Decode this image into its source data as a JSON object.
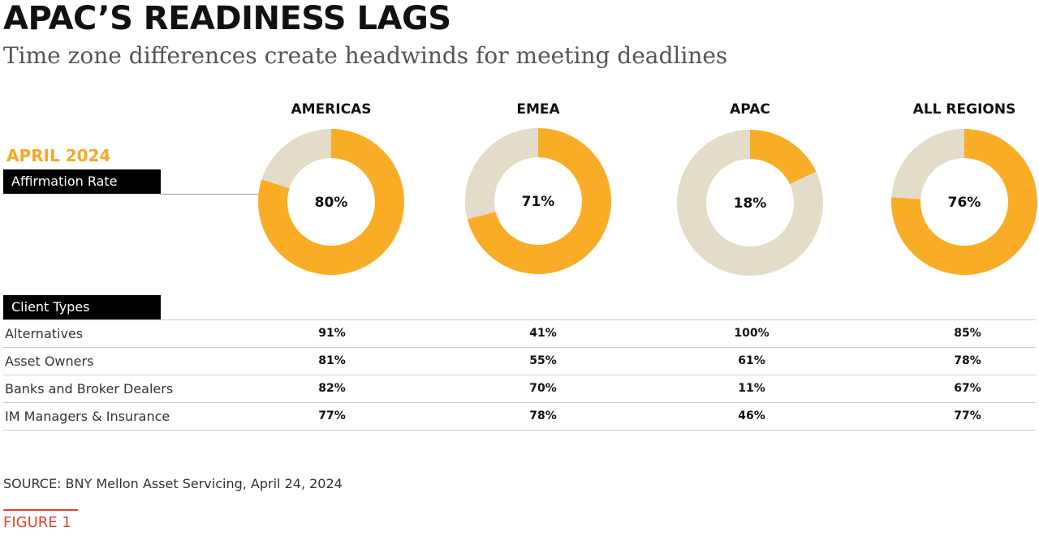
{
  "header": {
    "title": "APAC’S READINESS LAGS",
    "subtitle": "Time zone differences create headwinds for meeting deadlines"
  },
  "period_label": "APRIL 2024",
  "rate_label": "Affirmation Rate",
  "types_label": "Client Types",
  "colors": {
    "accent": "#f9ad26",
    "remainder": "#e3dcc8",
    "figure": "#e0442e"
  },
  "chart_data": {
    "type": "pie",
    "variant": "donut",
    "title": "APAC’S READINESS LAGS",
    "categories": [
      "AMERICAS",
      "EMEA",
      "APAC",
      "ALL REGIONS"
    ],
    "values": [
      80,
      71,
      18,
      76
    ],
    "value_labels": [
      "80%",
      "71%",
      "18%",
      "76%"
    ],
    "unit": "%",
    "table": {
      "rows": [
        {
          "name": "Alternatives",
          "values": [
            "91%",
            "41%",
            "100%",
            "85%"
          ]
        },
        {
          "name": "Asset Owners",
          "values": [
            "81%",
            "55%",
            "61%",
            "78%"
          ]
        },
        {
          "name": "Banks and Broker Dealers",
          "values": [
            "82%",
            "70%",
            "11%",
            "67%"
          ]
        },
        {
          "name": "IM Managers & Insurance",
          "values": [
            "77%",
            "78%",
            "46%",
            "77%"
          ]
        }
      ]
    }
  },
  "source": "SOURCE: BNY Mellon Asset Servicing, April 24, 2024",
  "figure_label": "FIGURE 1"
}
